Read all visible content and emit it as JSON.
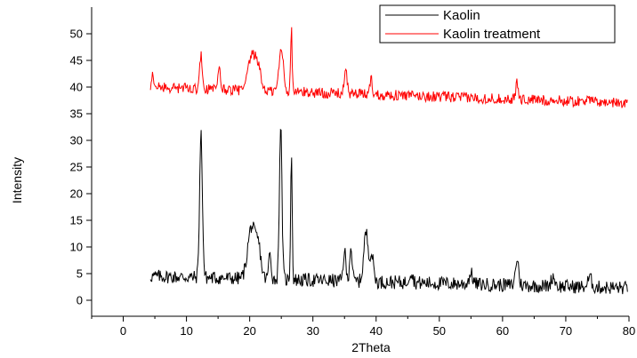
{
  "chart_data": {
    "type": "line",
    "xlabel": "2Theta",
    "ylabel": "Intensity",
    "xlim": [
      -5,
      80
    ],
    "ylim": [
      -3,
      55
    ],
    "x_ticks": [
      0,
      10,
      20,
      30,
      40,
      50,
      60,
      70,
      80
    ],
    "y_ticks": [
      0,
      5,
      10,
      15,
      20,
      25,
      30,
      35,
      40,
      45,
      50
    ],
    "grid": false,
    "legend_position": "top-right",
    "series": [
      {
        "name": "Kaolin",
        "color": "#000000",
        "baseline": 4.5,
        "end_baseline": 2.3,
        "noise": 1.3,
        "peaks": [
          {
            "x": 12.3,
            "y": 31.3,
            "w": 0.22
          },
          {
            "x": 20.3,
            "y": 13.8,
            "w": 0.6
          },
          {
            "x": 21.4,
            "y": 9.2,
            "w": 0.4
          },
          {
            "x": 23.2,
            "y": 8.7,
            "w": 0.2
          },
          {
            "x": 24.9,
            "y": 33.1,
            "w": 0.2
          },
          {
            "x": 26.6,
            "y": 28.5,
            "w": 0.12
          },
          {
            "x": 35.0,
            "y": 9.3,
            "w": 0.2
          },
          {
            "x": 36.0,
            "y": 10.0,
            "w": 0.2
          },
          {
            "x": 38.4,
            "y": 12.6,
            "w": 0.35
          },
          {
            "x": 39.3,
            "y": 8.3,
            "w": 0.3
          },
          {
            "x": 45.5,
            "y": 5.3,
            "w": 0.3
          },
          {
            "x": 55.0,
            "y": 5.0,
            "w": 0.3
          },
          {
            "x": 62.3,
            "y": 7.8,
            "w": 0.25
          },
          {
            "x": 68.0,
            "y": 4.5,
            "w": 0.3
          },
          {
            "x": 73.8,
            "y": 4.2,
            "w": 0.3
          }
        ]
      },
      {
        "name": "Kaolin treatment",
        "color": "#ff0000",
        "baseline": 40.0,
        "end_baseline": 37.0,
        "noise": 1.0,
        "peaks": [
          {
            "x": 4.6,
            "y": 42.0,
            "w": 0.15
          },
          {
            "x": 12.3,
            "y": 45.8,
            "w": 0.22
          },
          {
            "x": 15.2,
            "y": 43.2,
            "w": 0.2
          },
          {
            "x": 20.2,
            "y": 45.0,
            "w": 0.5
          },
          {
            "x": 21.2,
            "y": 44.5,
            "w": 0.5
          },
          {
            "x": 25.0,
            "y": 47.1,
            "w": 0.35
          },
          {
            "x": 26.6,
            "y": 50.7,
            "w": 0.12
          },
          {
            "x": 35.2,
            "y": 42.5,
            "w": 0.25
          },
          {
            "x": 39.2,
            "y": 41.6,
            "w": 0.2
          },
          {
            "x": 62.3,
            "y": 40.9,
            "w": 0.2
          },
          {
            "x": 73.5,
            "y": 38.8,
            "w": 0.2
          }
        ]
      }
    ]
  }
}
